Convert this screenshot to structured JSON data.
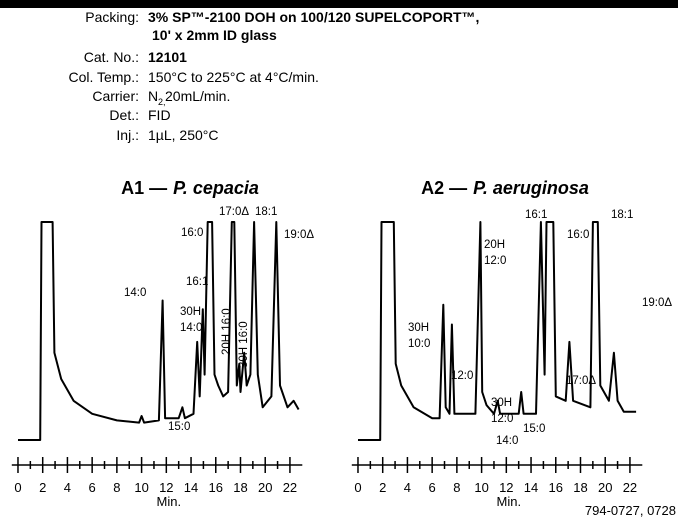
{
  "header": {
    "rows": [
      {
        "label": "Packing:",
        "lines": [
          "3% SP™-2100 DOH on 100/120 SUPELCOPORT™,",
          "10' x 2mm ID glass"
        ],
        "bold": true
      },
      {
        "label": "Cat. No.:",
        "lines": [
          "12101"
        ],
        "bold": true
      },
      {
        "label": "Col. Temp.:",
        "lines": [
          "150°C to 225°C at 4°C/min."
        ],
        "bold": false
      },
      {
        "label": "Carrier:",
        "lines": [
          "N"
        ],
        "sub": "2,",
        "rest": " 20mL/min.",
        "bold": false
      },
      {
        "label": "Det.:",
        "lines": [
          "FID"
        ],
        "bold": false
      },
      {
        "label": "Inj.:",
        "lines": [
          "1µL, 250°C"
        ],
        "bold": false
      }
    ]
  },
  "chart_data": [
    {
      "type": "chromatogram",
      "title_prefix": "A1 —",
      "organism": "P. cepacia",
      "xlabel": "Min.",
      "color": "#000000",
      "xlim": [
        -0.5,
        23
      ],
      "xticks": [
        0,
        2,
        4,
        6,
        8,
        10,
        12,
        14,
        16,
        18,
        20,
        22
      ],
      "xminorticks": [
        1,
        3,
        5,
        7,
        9,
        11,
        13,
        15,
        17,
        19,
        21
      ],
      "ylim": [
        0,
        100
      ],
      "x": [
        0,
        1.8,
        1.9,
        2.8,
        2.95,
        3.5,
        4.5,
        6,
        8,
        9.8,
        10,
        10.2,
        11.4,
        11.7,
        11.9,
        13,
        13.3,
        13.5,
        14.2,
        14.5,
        14.7,
        14.95,
        15.1,
        15.35,
        15.7,
        15.9,
        16.2,
        16.6,
        17,
        17.3,
        17.5,
        17.7,
        17.9,
        18,
        18.3,
        18.5,
        18.8,
        19.1,
        19.4,
        19.8,
        20.5,
        20.9,
        21.2,
        21.8,
        22.3,
        22.7
      ],
      "values": [
        0,
        0,
        100,
        100,
        40,
        28,
        18,
        12,
        9,
        8,
        11,
        8,
        9,
        64,
        10,
        10,
        15,
        10,
        12,
        45,
        20,
        60,
        30,
        100,
        100,
        30,
        25,
        20,
        22,
        100,
        100,
        25,
        35,
        22,
        40,
        25,
        30,
        100,
        30,
        15,
        20,
        100,
        25,
        15,
        18,
        14
      ],
      "peak_labels": [
        [
          "14:0"
        ],
        [
          "15:0"
        ],
        [
          "30H",
          "14:0"
        ],
        [
          "16:1"
        ],
        [
          "16:0"
        ],
        [
          "20H 16:0"
        ],
        [
          "30H 16:0"
        ],
        [
          "17:0Δ"
        ],
        [
          "18:1"
        ],
        [
          "19:0Δ"
        ]
      ]
    },
    {
      "type": "chromatogram",
      "title_prefix": "A2 —",
      "organism": "P. aeruginosa",
      "xlabel": "Min.",
      "color": "#000000",
      "xlim": [
        -0.5,
        23
      ],
      "xticks": [
        0,
        2,
        4,
        6,
        8,
        10,
        12,
        14,
        16,
        18,
        20,
        22
      ],
      "xminorticks": [
        1,
        3,
        5,
        7,
        9,
        11,
        13,
        15,
        17,
        19,
        21
      ],
      "ylim": [
        0,
        100
      ],
      "x": [
        0,
        1.8,
        1.9,
        2.9,
        3.05,
        3.5,
        4.5,
        6,
        6.6,
        6.9,
        7.1,
        7.4,
        7.6,
        7.8,
        9.5,
        9.9,
        10.05,
        10.4,
        11,
        11.3,
        11.5,
        13,
        13.2,
        13.4,
        14.4,
        14.8,
        15.1,
        15.25,
        15.8,
        16,
        16.8,
        17.1,
        17.4,
        18.8,
        19,
        19.4,
        19.6,
        20.3,
        20.7,
        21,
        21.5,
        22.5
      ],
      "values": [
        0,
        0,
        100,
        100,
        35,
        25,
        15,
        10,
        10,
        62,
        15,
        12,
        53,
        12,
        12,
        100,
        22,
        16,
        12,
        18,
        12,
        12,
        22,
        12,
        12,
        100,
        30,
        100,
        100,
        20,
        18,
        45,
        18,
        15,
        100,
        100,
        25,
        18,
        40,
        18,
        13,
        13
      ],
      "peak_labels": [
        [
          "30H",
          "10:0"
        ],
        [
          "12:0"
        ],
        [
          "20H",
          "12:0"
        ],
        [
          "30H",
          "12:0"
        ],
        [
          "14:0"
        ],
        [
          "15:0"
        ],
        [
          "16:1"
        ],
        [
          "16:0"
        ],
        [
          "17:0Δ"
        ],
        [
          "18:1"
        ],
        [
          "19:0Δ"
        ]
      ]
    }
  ],
  "footer": "794-0727, 0728"
}
